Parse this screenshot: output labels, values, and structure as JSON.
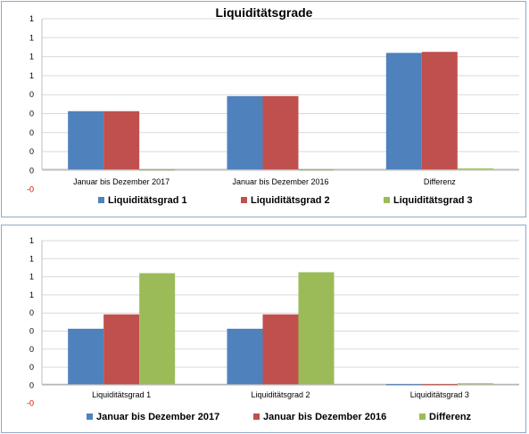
{
  "charts": [
    {
      "title": "Liquiditätsgrade",
      "y_ticks": [
        "1",
        "1",
        "1",
        "1",
        "0",
        "0",
        "0",
        "0",
        "0",
        "-0"
      ]
    },
    {
      "title": "",
      "y_ticks": [
        "1",
        "1",
        "1",
        "1",
        "0",
        "0",
        "0",
        "0",
        "0",
        "-0"
      ]
    }
  ],
  "chart_data": [
    {
      "type": "bar",
      "title": "Liquiditätsgrade",
      "categories": [
        "Januar bis Dezember 2017",
        "Januar bis Dezember 2016",
        "Differenz"
      ],
      "series": [
        {
          "name": "Liquiditätsgrad 1",
          "color": "#4f81bd",
          "values": [
            0.58,
            0.73,
            1.16
          ]
        },
        {
          "name": "Liquiditätsgrad 2",
          "color": "#c0504d",
          "values": [
            0.58,
            0.73,
            1.17
          ]
        },
        {
          "name": "Liquiditätsgrad 3",
          "color": "#9bbb59",
          "values": [
            0.0,
            0.0,
            0.01
          ]
        }
      ],
      "ylim": [
        -0.2,
        1.5
      ],
      "grid": true,
      "legend": "bottom"
    },
    {
      "type": "bar",
      "title": "",
      "categories": [
        "Liquiditätsgrad 1",
        "Liquiditätsgrad 2",
        "Liquiditätsgrad 3"
      ],
      "series": [
        {
          "name": "Januar bis Dezember 2017",
          "color": "#4f81bd",
          "values": [
            0.58,
            0.58,
            0.0
          ]
        },
        {
          "name": "Januar bis Dezember 2016",
          "color": "#c0504d",
          "values": [
            0.73,
            0.73,
            0.0
          ]
        },
        {
          "name": "Differenz",
          "color": "#9bbb59",
          "values": [
            1.16,
            1.17,
            0.01
          ]
        }
      ],
      "ylim": [
        -0.2,
        1.5
      ],
      "grid": true,
      "legend": "bottom"
    }
  ]
}
